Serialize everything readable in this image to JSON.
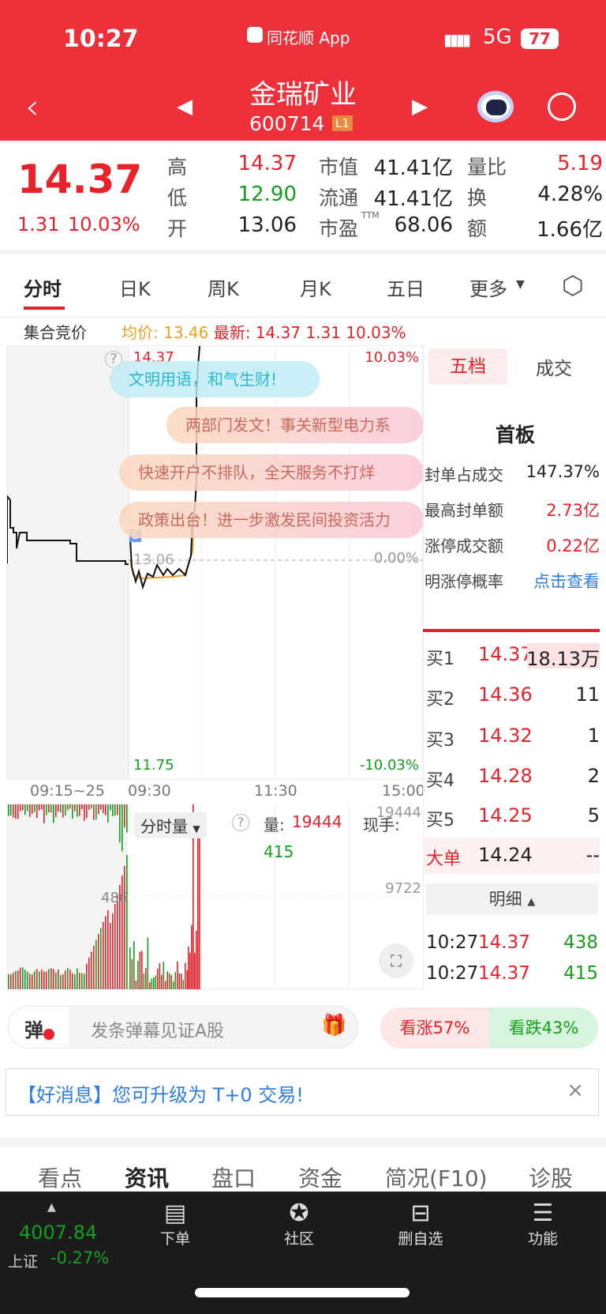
{
  "status_bar": {
    "time": "10:27",
    "app": "同花顺 App",
    "network": "5G",
    "battery": "77"
  },
  "header": {
    "stock_name": "金瑞矿业",
    "stock_code": "600714",
    "level_badge": "L1"
  },
  "quote": {
    "price": "14.37",
    "change": "1.31",
    "change_pct": "10.03%",
    "rows": [
      {
        "l1": "高",
        "v1": "14.37",
        "l2": "市值",
        "v2": "41.41亿",
        "l3": "量比",
        "v3": "5.19"
      },
      {
        "l1": "低",
        "v1": "12.90",
        "l2": "流通",
        "v2": "41.41亿",
        "l3": "换",
        "v3": "4.28%"
      },
      {
        "l1": "开",
        "v1": "13.06",
        "l2": "市盈",
        "sup": "TTM",
        "v2": "68.06",
        "l3": "额",
        "v3": "1.66亿"
      }
    ]
  },
  "chart_tabs": [
    "分时",
    "日K",
    "周K",
    "月K",
    "五日",
    "更多"
  ],
  "info_line": {
    "auction": "集合竞价",
    "avg": "均价: 13.46",
    "latest": "最新: 14.37",
    "chg": "1.31",
    "pct": "10.03%"
  },
  "price_chart": {
    "top_price": "14.37",
    "top_pct": "10.03%",
    "mid_price": "13.06",
    "mid_pct": "0.00%",
    "bottom_price": "11.75",
    "bottom_pct": "-10.03%",
    "times": [
      "09:15~25",
      "09:30",
      "11:30",
      "15:00"
    ],
    "marker": "S"
  },
  "danmu": [
    "文明用语，和气生财!",
    "两部门发文！事关新型电力系",
    "快速开户不排队，全天服务不打烊",
    "政策出台！进一步激发民间投资活力"
  ],
  "volume": {
    "selector": "分时量",
    "label": "量:",
    "value": "19444",
    "current_label": "现手:",
    "current": "415",
    "max": "19444",
    "mid": "9722",
    "pre_mid": "486"
  },
  "side": {
    "tabs": [
      "五档",
      "成交"
    ],
    "board": "首板",
    "stats": [
      {
        "label": "封单占成交",
        "value": "147.37%"
      },
      {
        "label": "最高封单额",
        "value": "2.73亿"
      },
      {
        "label": "涨停成交额",
        "value": "0.22亿"
      },
      {
        "label": "明涨停概率",
        "value": "点击查看"
      }
    ],
    "bids": [
      {
        "label": "买1",
        "price": "14.37",
        "vol": "18.13万"
      },
      {
        "label": "买2",
        "price": "14.36",
        "vol": "11"
      },
      {
        "label": "买3",
        "price": "14.32",
        "vol": "1"
      },
      {
        "label": "买4",
        "price": "14.28",
        "vol": "2"
      },
      {
        "label": "买5",
        "price": "14.25",
        "vol": "5"
      }
    ],
    "big": {
      "label": "大单",
      "price": "14.24",
      "vol": "--"
    },
    "detail": "明细",
    "trades": [
      {
        "time": "10:27",
        "price": "14.37",
        "vol": "438"
      },
      {
        "time": "10:27",
        "price": "14.37",
        "vol": "415"
      }
    ]
  },
  "danmu_bar": {
    "icon": "弹",
    "placeholder": "发条弹幕见证A股",
    "bull": "看涨57%",
    "bear": "看跌43%"
  },
  "notice": {
    "text": "【好消息】您可升级为 T+0 交易!"
  },
  "bottom_tabs": [
    "看点",
    "资讯",
    "盘口",
    "资金",
    "简况(F10)",
    "诊股"
  ],
  "nav": {
    "index_value": "4007.84",
    "index_name": "上证",
    "index_pct": "-0.27%",
    "items": [
      "下单",
      "社区",
      "删自选",
      "功能"
    ]
  },
  "colors": {
    "brand": "#ee303a",
    "up": "#e8222b",
    "down": "#14a01e",
    "link": "#2f7de1"
  }
}
